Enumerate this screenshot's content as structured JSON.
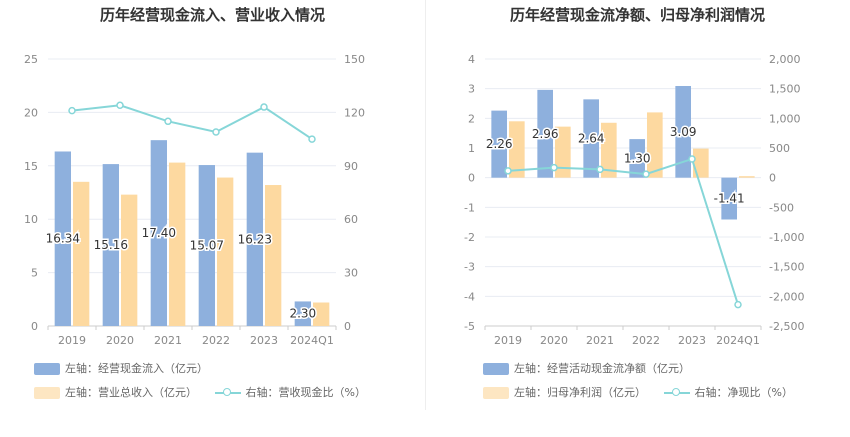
{
  "chart_data": [
    {
      "type": "bar",
      "title": "历年经营现金流入、营业收入情况",
      "categories": [
        "2019",
        "2020",
        "2021",
        "2022",
        "2023",
        "2024Q1"
      ],
      "left_axis": {
        "min": 0,
        "max": 25,
        "ticks": [
          "0",
          "5",
          "10",
          "15",
          "20",
          "25"
        ]
      },
      "right_axis": {
        "min": 0,
        "max": 150,
        "ticks": [
          "0",
          "30",
          "60",
          "90",
          "120",
          "150"
        ]
      },
      "series": [
        {
          "name": "左轴：经营现金流入（亿元）",
          "axis": "left",
          "kind": "bar",
          "color": "#8eb0dd",
          "values": [
            16.34,
            15.16,
            17.4,
            15.07,
            16.23,
            2.3
          ],
          "labels": [
            "16.34",
            "15.16",
            "17.40",
            "15.07",
            "16.23",
            "2.30"
          ]
        },
        {
          "name": "左轴：营业总收入（亿元）",
          "axis": "left",
          "kind": "bar",
          "color": "#fdd9a0",
          "values": [
            13.5,
            12.3,
            15.3,
            13.9,
            13.2,
            2.2
          ]
        },
        {
          "name": "右轴：营收现金比（%）",
          "axis": "right",
          "kind": "line",
          "color": "#86d6d8",
          "values": [
            121,
            124,
            115,
            109,
            123,
            105
          ]
        }
      ]
    },
    {
      "type": "bar",
      "title": "历年经营现金流净额、归母净利润情况",
      "categories": [
        "2019",
        "2020",
        "2021",
        "2022",
        "2023",
        "2024Q1"
      ],
      "left_axis": {
        "min": -5,
        "max": 4,
        "ticks": [
          "-5",
          "-4",
          "-3",
          "-2",
          "-1",
          "0",
          "1",
          "2",
          "3",
          "4"
        ]
      },
      "right_axis": {
        "min": -2500,
        "max": 2000,
        "ticks": [
          "-2,500",
          "-2,000",
          "-1,500",
          "-1,000",
          "-500",
          "0",
          "500",
          "1,000",
          "1,500",
          "2,000"
        ]
      },
      "series": [
        {
          "name": "左轴：经营活动现金流净额（亿元）",
          "axis": "left",
          "kind": "bar",
          "color": "#8eb0dd",
          "values": [
            2.26,
            2.96,
            2.64,
            1.3,
            3.09,
            -1.41
          ],
          "labels": [
            "2.26",
            "2.96",
            "2.64",
            "1.30",
            "3.09",
            "-1.41"
          ]
        },
        {
          "name": "左轴：归母净利润（亿元）",
          "axis": "left",
          "kind": "bar",
          "color": "#fdd9a0",
          "values": [
            1.9,
            1.72,
            1.85,
            2.2,
            0.98,
            0.05
          ]
        },
        {
          "name": "右轴：净现比（%）",
          "axis": "right",
          "kind": "line",
          "color": "#86d6d8",
          "values": [
            115,
            170,
            140,
            60,
            315,
            -2140
          ]
        }
      ]
    }
  ]
}
